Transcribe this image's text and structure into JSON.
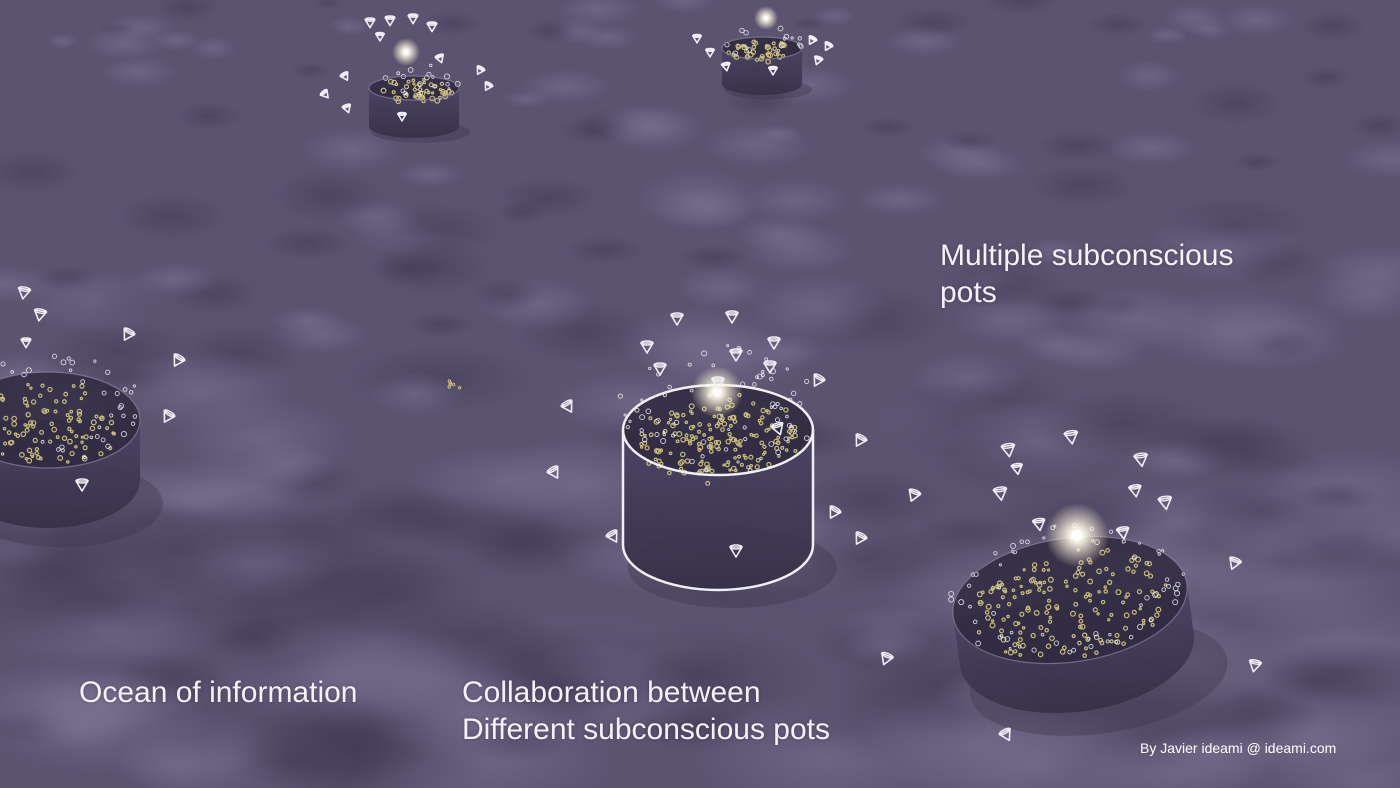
{
  "captions": {
    "multiple_pots": [
      "Multiple subconscious",
      "pots"
    ],
    "ocean": "Ocean of information",
    "collaboration": [
      "Collaboration between",
      "Different subconscious pots"
    ]
  },
  "credit": "By Javier ideami @ ideami.com",
  "colors": {
    "background": "#5b5370",
    "cloud_light": "#7a7190",
    "cloud_dark": "#463f5a",
    "pot_body": "#3c3550",
    "particle_gold": "#c8bd7a",
    "outline_white": "#f0eef6"
  },
  "icons": [
    "cone-marker-icon",
    "ring-particle-icon",
    "glow-light-icon"
  ]
}
